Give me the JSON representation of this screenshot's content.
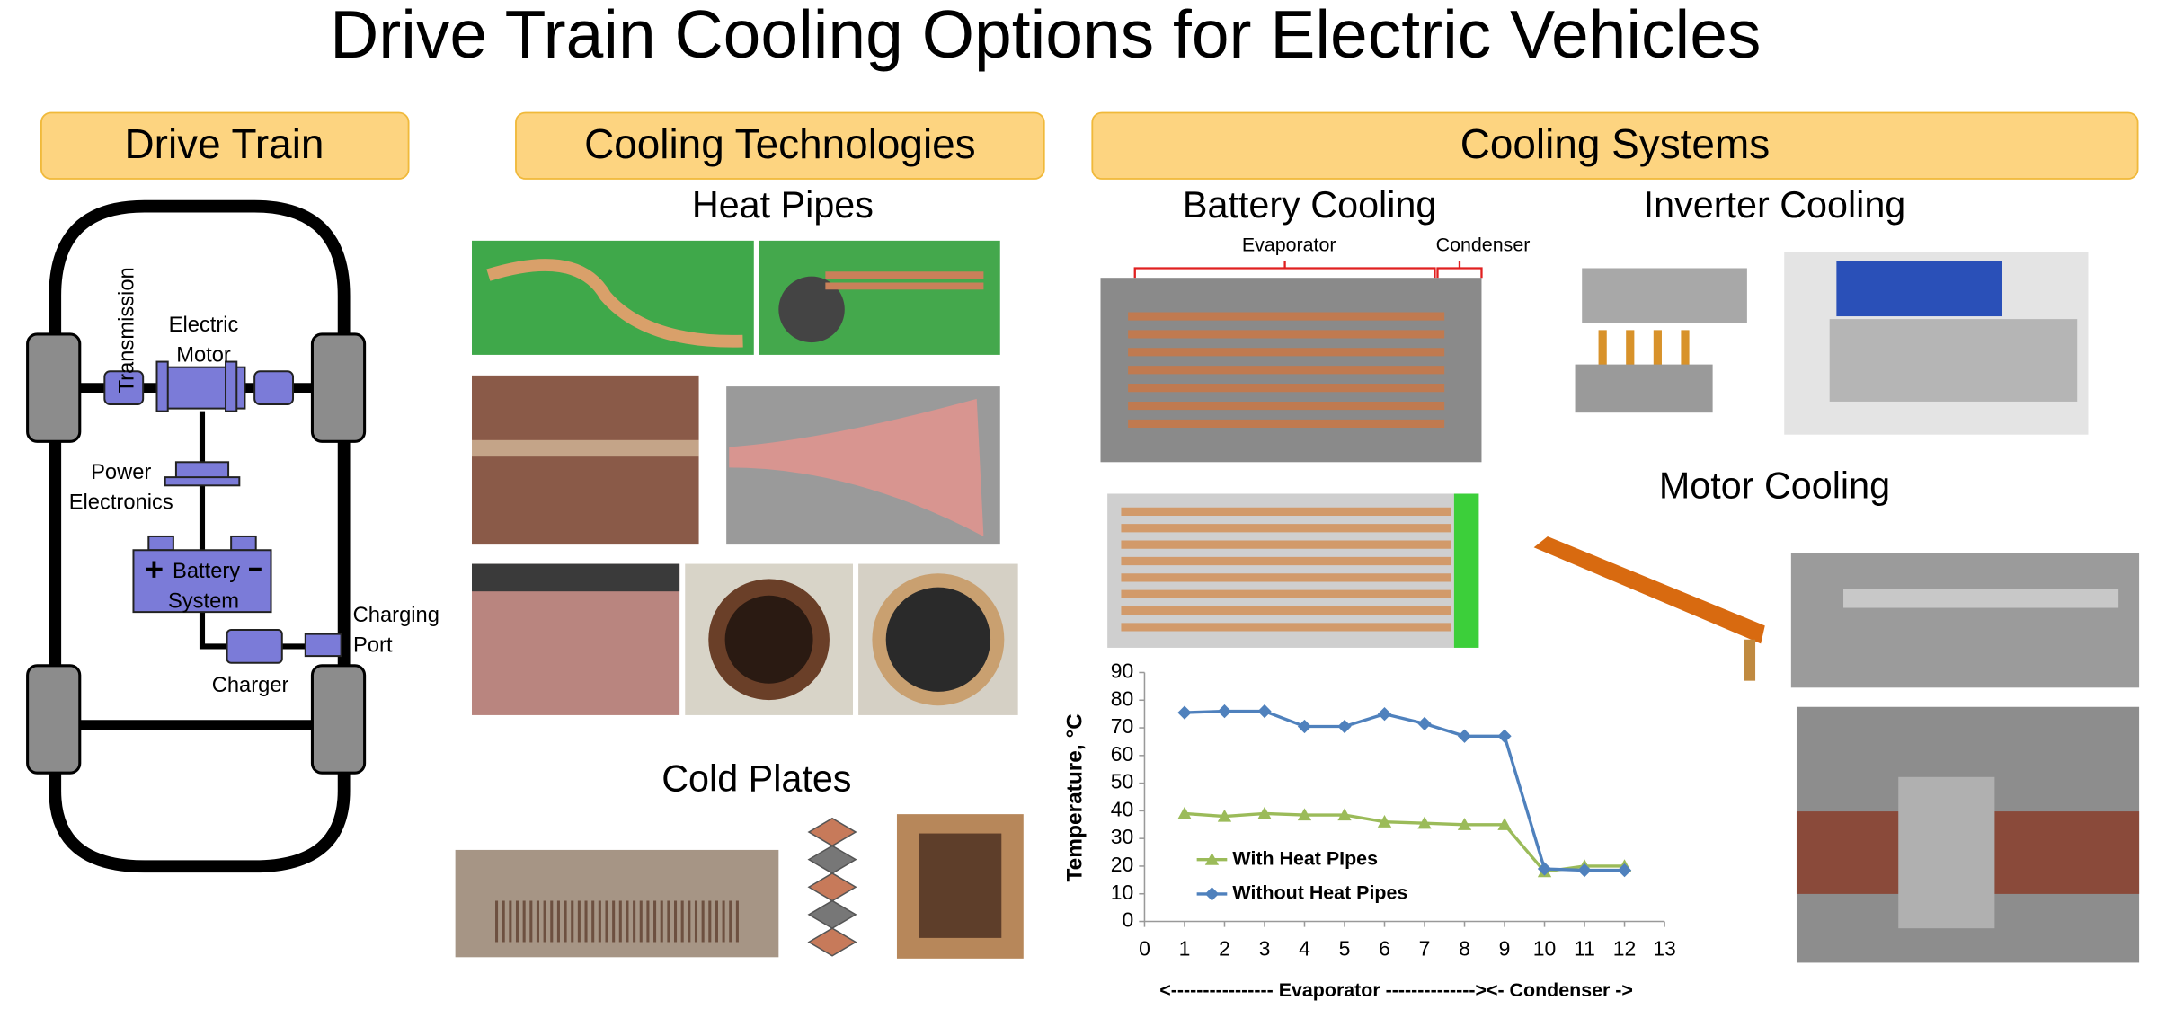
{
  "title": "Drive Train Cooling Options for Electric Vehicles",
  "drive_train": {
    "header": "Drive Train",
    "transmission": "Transmission",
    "electric_motor": [
      "Electric",
      "Motor"
    ],
    "power_electronics": [
      "Power",
      "Electronics"
    ],
    "battery_system": [
      "Battery",
      "System"
    ],
    "charging_port": [
      "Charging",
      "Port"
    ],
    "charger": "Charger"
  },
  "cooling_technologies": {
    "header": "Cooling Technologies",
    "heat_pipes": "Heat Pipes",
    "cold_plates": "Cold Plates"
  },
  "cooling_systems": {
    "header": "Cooling Systems",
    "battery_cooling": "Battery Cooling",
    "evaporator": "Evaporator",
    "condenser": "Condenser",
    "inverter_cooling": "Inverter Cooling",
    "motor_cooling": "Motor Cooling"
  },
  "chart_data": {
    "type": "line",
    "y_label": "Temperature, °C",
    "x_label": "<---------------- Evaporator --------------><- Condenser ->",
    "x": [
      1,
      2,
      3,
      4,
      5,
      6,
      7,
      8,
      9,
      10,
      11,
      12
    ],
    "xlim": [
      0,
      13
    ],
    "xticks": [
      0,
      1,
      2,
      3,
      4,
      5,
      6,
      7,
      8,
      9,
      10,
      11,
      12,
      13
    ],
    "ylim": [
      0,
      90
    ],
    "yticks": [
      0,
      10,
      20,
      30,
      40,
      50,
      60,
      70,
      80,
      90
    ],
    "legend": "lower left",
    "series": [
      {
        "name": "With Heat PIpes",
        "color": "#9bbb59",
        "marker": "triangle",
        "values": [
          39,
          38,
          39,
          38.5,
          38.5,
          36,
          35.5,
          35,
          35,
          18,
          20,
          20
        ]
      },
      {
        "name": "Without Heat Pipes",
        "color": "#4f81bd",
        "marker": "diamond",
        "values": [
          75.5,
          76,
          76,
          70.5,
          70.5,
          75,
          71.5,
          67,
          67,
          19,
          18.5,
          18.5
        ]
      }
    ]
  }
}
